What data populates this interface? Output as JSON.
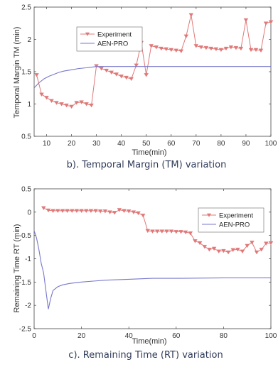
{
  "chart_data": [
    {
      "type": "line",
      "caption": "b). Temporal Margin (TM) variation",
      "xlabel": "Time(min)",
      "ylabel": "Temporal Margin TM (min)",
      "xlim": [
        5,
        100
      ],
      "ylim": [
        0.5,
        2.5
      ],
      "xticks": [
        10,
        20,
        30,
        40,
        50,
        60,
        70,
        80,
        90,
        100
      ],
      "yticks": [
        0.5,
        1,
        1.5,
        2,
        2.5
      ],
      "legend_position": "top-center",
      "series": [
        {
          "name": "Experiment",
          "color": "#e07878",
          "marker": "triangle-down",
          "x": [
            6,
            8,
            10,
            12,
            14,
            16,
            18,
            20,
            22,
            24,
            26,
            28,
            30,
            32,
            34,
            36,
            38,
            40,
            42,
            44,
            46,
            48,
            50,
            52,
            54,
            56,
            58,
            60,
            62,
            64,
            66,
            68,
            70,
            72,
            74,
            76,
            78,
            80,
            82,
            84,
            86,
            88,
            90,
            92,
            94,
            96,
            98,
            100
          ],
          "y": [
            1.45,
            1.15,
            1.1,
            1.05,
            1.02,
            1.0,
            0.98,
            0.96,
            1.02,
            1.03,
            1.0,
            0.98,
            1.59,
            1.55,
            1.52,
            1.49,
            1.46,
            1.43,
            1.41,
            1.39,
            1.6,
            1.95,
            1.45,
            1.9,
            1.88,
            1.86,
            1.85,
            1.84,
            1.83,
            1.82,
            2.05,
            2.38,
            1.9,
            1.88,
            1.87,
            1.86,
            1.85,
            1.84,
            1.86,
            1.88,
            1.87,
            1.86,
            2.3,
            1.84,
            1.84,
            1.83,
            2.25,
            2.27
          ]
        },
        {
          "name": "AEN-PRO",
          "color": "#7777cc",
          "marker": "none",
          "x": [
            5,
            7,
            9,
            11,
            13,
            15,
            17,
            20,
            23,
            26,
            30,
            40,
            60,
            100
          ],
          "y": [
            1.25,
            1.33,
            1.39,
            1.43,
            1.46,
            1.49,
            1.51,
            1.53,
            1.55,
            1.56,
            1.58,
            1.58,
            1.58,
            1.58
          ]
        }
      ]
    },
    {
      "type": "line",
      "caption": "c). Remaining Time (RT) variation",
      "xlabel": "Time(min)",
      "ylabel": "Remaining Time RT (min)",
      "xlim": [
        0,
        100
      ],
      "ylim": [
        -2.5,
        0.5
      ],
      "xticks": [
        0,
        20,
        40,
        60,
        80,
        100
      ],
      "yticks": [
        0.5,
        0,
        -0.5,
        -1,
        -1.5,
        -2,
        -2.5
      ],
      "legend_position": "top-right",
      "series": [
        {
          "name": "Experiment",
          "color": "#e07878",
          "marker": "triangle-down",
          "x": [
            4,
            6,
            8,
            10,
            12,
            14,
            16,
            18,
            20,
            22,
            24,
            26,
            28,
            30,
            32,
            34,
            36,
            38,
            40,
            42,
            44,
            46,
            48,
            50,
            52,
            54,
            56,
            58,
            60,
            62,
            64,
            66,
            68,
            70,
            72,
            74,
            76,
            78,
            80,
            82,
            84,
            86,
            88,
            90,
            92,
            94,
            96,
            98,
            100
          ],
          "y": [
            0.09,
            0.04,
            0.03,
            0.03,
            0.03,
            0.03,
            0.03,
            0.03,
            0.03,
            0.03,
            0.03,
            0.03,
            0.02,
            0.02,
            0.0,
            -0.01,
            0.05,
            0.03,
            0.02,
            0.0,
            -0.02,
            -0.07,
            -0.4,
            -0.41,
            -0.41,
            -0.41,
            -0.41,
            -0.41,
            -0.42,
            -0.42,
            -0.43,
            -0.45,
            -0.62,
            -0.66,
            -0.74,
            -0.8,
            -0.78,
            -0.84,
            -0.83,
            -0.86,
            -0.81,
            -0.8,
            -0.84,
            -0.72,
            -0.65,
            -0.86,
            -0.8,
            -0.67,
            -0.66
          ]
        },
        {
          "name": "AEN-PRO",
          "color": "#7777cc",
          "marker": "none",
          "x": [
            0,
            1,
            2,
            3,
            4,
            5,
            6,
            7,
            8,
            10,
            12,
            15,
            20,
            25,
            30,
            40,
            50,
            60,
            80,
            100
          ],
          "y": [
            -0.4,
            -0.55,
            -0.8,
            -1.1,
            -1.3,
            -1.7,
            -2.08,
            -1.85,
            -1.68,
            -1.6,
            -1.56,
            -1.53,
            -1.5,
            -1.48,
            -1.46,
            -1.44,
            -1.42,
            -1.42,
            -1.41,
            -1.41
          ]
        }
      ]
    }
  ]
}
